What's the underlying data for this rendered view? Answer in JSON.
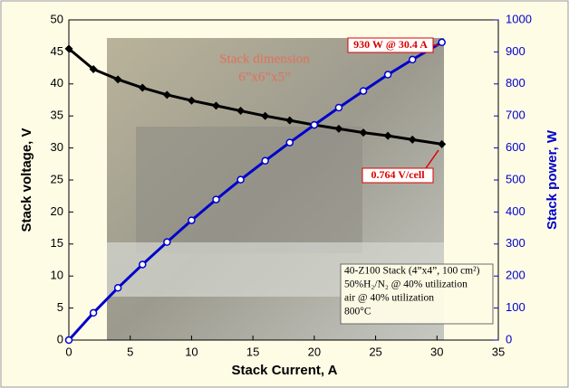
{
  "chart_data": {
    "type": "line",
    "x_label": "Stack Current, A",
    "y_label": "Stack voltage, V",
    "y2_label": "Stack power, W",
    "x": [
      0,
      2,
      4,
      6,
      8,
      10,
      12,
      14,
      16,
      18,
      20,
      22,
      24,
      26,
      28,
      30.4
    ],
    "series": [
      {
        "color": "#000000",
        "marker": "diamond",
        "values": [
          45.5,
          42.3,
          40.7,
          39.4,
          38.3,
          37.4,
          36.6,
          35.8,
          35.0,
          34.3,
          33.6,
          33.0,
          32.4,
          31.9,
          31.3,
          30.6
        ]
      },
      {
        "color": "#0000cc",
        "marker": "open-circle",
        "axis": "y2",
        "values": [
          0,
          85,
          163,
          236,
          306,
          374,
          439,
          501,
          560,
          617,
          672,
          726,
          778,
          829,
          876,
          930
        ]
      }
    ],
    "xlim": [
      0,
      35
    ],
    "xticks": [
      0,
      5,
      10,
      15,
      20,
      25,
      30,
      35
    ],
    "ylim": [
      0,
      50
    ],
    "yticks": [
      0,
      5,
      10,
      15,
      20,
      25,
      30,
      35,
      40,
      45,
      50
    ],
    "y2lim": [
      0,
      1000
    ],
    "y2ticks": [
      0,
      100,
      200,
      300,
      400,
      500,
      600,
      700,
      800,
      900,
      1000
    ],
    "y2_color": "#0000cc",
    "grid": false,
    "annotations": [
      "Stack dimension",
      "6”x6”x5”",
      "930 W @ 30.4 A",
      "0.764 V/cell"
    ],
    "info_box": [
      "40-Z100 Stack (4”x4”, 100 cm²)",
      "50%H₂/N₂ @ 40% utilization",
      "air @ 40% utilization",
      "800°C"
    ]
  }
}
